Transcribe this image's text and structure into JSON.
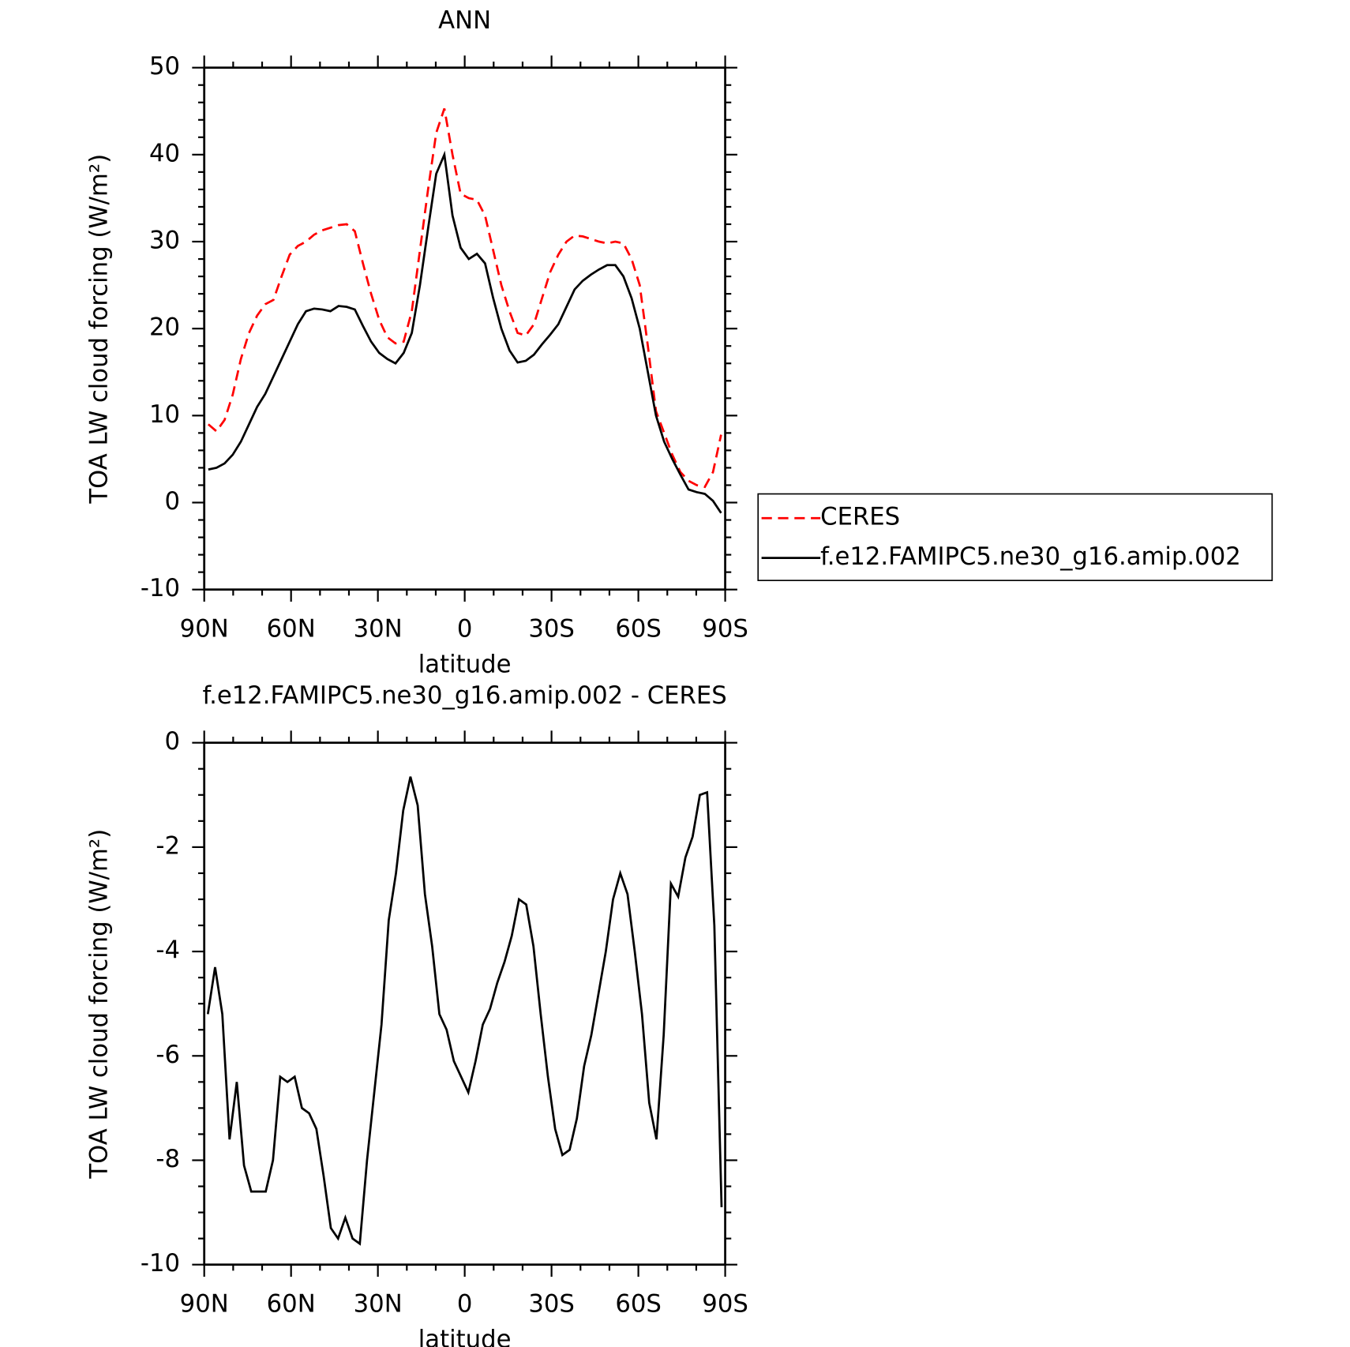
{
  "chart_data": [
    {
      "type": "line",
      "title": "ANN",
      "xlabel": "latitude",
      "ylabel": "TOA LW cloud forcing (W/m²)",
      "x": [
        88.59,
        85.78,
        82.97,
        80.16,
        77.34,
        74.53,
        71.72,
        68.91,
        66.09,
        63.28,
        60.47,
        57.66,
        54.84,
        52.03,
        49.22,
        46.41,
        43.59,
        40.78,
        37.97,
        35.16,
        32.34,
        29.53,
        26.72,
        23.91,
        21.09,
        18.28,
        15.47,
        12.66,
        9.84,
        7.03,
        4.22,
        1.41,
        -1.41,
        -4.22,
        -7.03,
        -9.84,
        -12.66,
        -15.47,
        -18.28,
        -21.09,
        -23.91,
        -26.72,
        -29.53,
        -32.34,
        -35.16,
        -37.97,
        -40.78,
        -43.59,
        -46.41,
        -49.22,
        -52.03,
        -54.84,
        -57.66,
        -60.47,
        -63.28,
        -66.09,
        -68.91,
        -71.72,
        -74.53,
        -77.34,
        -80.16,
        -82.97,
        -85.78,
        -88.59
      ],
      "series": [
        {
          "name": "CERES",
          "color": "#ff0000",
          "style": "dashed",
          "values": [
            9.0,
            8.2,
            9.5,
            12.4,
            16.5,
            19.5,
            21.5,
            22.8,
            23.3,
            26.0,
            28.5,
            29.5,
            30.0,
            30.8,
            31.3,
            31.6,
            31.9,
            32.0,
            31.2,
            27.5,
            24.0,
            21.0,
            19.0,
            18.3,
            18.5,
            22.0,
            29.0,
            36.0,
            42.5,
            45.3,
            40.0,
            35.5,
            35.0,
            34.8,
            33.0,
            29.0,
            25.0,
            22.0,
            19.5,
            19.2,
            20.5,
            23.5,
            26.5,
            28.5,
            30.0,
            30.7,
            30.6,
            30.3,
            30.0,
            29.8,
            30.0,
            29.8,
            28.0,
            25.0,
            18.0,
            10.5,
            8.0,
            5.5,
            3.5,
            2.5,
            2.0,
            1.8,
            3.5,
            7.8
          ]
        },
        {
          "name": "f.e12.FAMIPC5.ne30_g16.amip.002",
          "color": "#000000",
          "style": "solid",
          "values": [
            3.8,
            4.0,
            4.5,
            5.5,
            7.0,
            9.0,
            11.0,
            12.5,
            14.5,
            16.5,
            18.5,
            20.5,
            22.0,
            22.3,
            22.2,
            22.0,
            22.6,
            22.5,
            22.2,
            20.3,
            18.5,
            17.2,
            16.5,
            16.0,
            17.2,
            19.5,
            25.0,
            31.5,
            37.8,
            40.0,
            33.0,
            29.3,
            28.0,
            28.6,
            27.5,
            23.5,
            20.0,
            17.5,
            16.1,
            16.3,
            17.0,
            18.2,
            19.3,
            20.5,
            22.5,
            24.5,
            25.5,
            26.2,
            26.8,
            27.3,
            27.3,
            26.0,
            23.5,
            20.0,
            15.0,
            10.0,
            7.0,
            5.0,
            3.2,
            1.5,
            1.2,
            1.0,
            0.2,
            -1.2
          ]
        }
      ],
      "xlim": [
        90,
        -90
      ],
      "xticks": [
        {
          "value": 90,
          "label": "90N"
        },
        {
          "value": 60,
          "label": "60N"
        },
        {
          "value": 30,
          "label": "30N"
        },
        0,
        {
          "value": -30,
          "label": "30S"
        },
        {
          "value": -60,
          "label": "60S"
        },
        {
          "value": -90,
          "label": "90S"
        }
      ],
      "xminorticks": [
        80,
        70,
        50,
        40,
        20,
        10,
        -10,
        -20,
        -40,
        -50,
        -70,
        -80
      ],
      "ylim": [
        -10,
        50
      ],
      "yticks": [
        -10,
        0,
        10,
        20,
        30,
        40,
        50
      ],
      "yminorticks": [
        -8,
        -6,
        -4,
        -2,
        2,
        4,
        6,
        8,
        12,
        14,
        16,
        18,
        22,
        24,
        26,
        28,
        32,
        34,
        36,
        38,
        42,
        44,
        46,
        48
      ],
      "legend": "right"
    },
    {
      "type": "line",
      "title": "f.e12.FAMIPC5.ne30_g16.amip.002 - CERES",
      "xlabel": "latitude",
      "ylabel": "TOA LW cloud forcing (W/m²)",
      "x": [
        88.75,
        86.25,
        83.75,
        81.25,
        78.75,
        76.25,
        73.75,
        71.25,
        68.75,
        66.25,
        63.75,
        61.25,
        58.75,
        56.25,
        53.75,
        51.25,
        48.75,
        46.25,
        43.75,
        41.25,
        38.75,
        36.25,
        33.75,
        31.25,
        28.75,
        26.25,
        23.75,
        21.25,
        18.75,
        16.25,
        13.75,
        11.25,
        8.75,
        6.25,
        3.75,
        1.25,
        -1.25,
        -3.75,
        -6.25,
        -8.75,
        -11.25,
        -13.75,
        -16.25,
        -18.75,
        -21.25,
        -23.75,
        -26.25,
        -28.75,
        -31.25,
        -33.75,
        -36.25,
        -38.75,
        -41.25,
        -43.75,
        -46.25,
        -48.75,
        -51.25,
        -53.75,
        -56.25,
        -58.75,
        -61.25,
        -63.75,
        -66.25,
        -68.75,
        -71.25,
        -73.75,
        -76.25,
        -78.75,
        -81.25,
        -83.75,
        -86.25,
        -88.75
      ],
      "color": "#000000",
      "values": [
        -5.2,
        -4.3,
        -5.2,
        -7.6,
        -6.5,
        -8.1,
        -8.6,
        -8.6,
        -8.6,
        -8.0,
        -6.4,
        -6.5,
        -6.4,
        -7.0,
        -7.1,
        -7.4,
        -8.3,
        -9.3,
        -9.5,
        -9.1,
        -9.5,
        -9.6,
        -8.0,
        -6.7,
        -5.4,
        -3.4,
        -2.5,
        -1.3,
        -0.65,
        -1.2,
        -2.9,
        -3.9,
        -5.2,
        -5.5,
        -6.1,
        -6.4,
        -6.7,
        -6.1,
        -5.4,
        -5.1,
        -4.6,
        -4.2,
        -3.7,
        -3.0,
        -3.1,
        -3.9,
        -5.2,
        -6.4,
        -7.4,
        -7.9,
        -7.8,
        -7.2,
        -6.2,
        -5.6,
        -4.8,
        -4.0,
        -3.0,
        -2.5,
        -2.9,
        -4.0,
        -5.2,
        -6.9,
        -7.6,
        -5.6,
        -2.7,
        -2.95,
        -2.2,
        -1.8,
        -1.0,
        -0.95,
        -3.5,
        -8.9
      ],
      "xlim": [
        90,
        -90
      ],
      "xticks": [
        {
          "value": 90,
          "label": "90N"
        },
        {
          "value": 60,
          "label": "60N"
        },
        {
          "value": 30,
          "label": "30N"
        },
        0,
        {
          "value": -30,
          "label": "30S"
        },
        {
          "value": -60,
          "label": "60S"
        },
        {
          "value": -90,
          "label": "90S"
        }
      ],
      "xminorticks": [
        80,
        70,
        50,
        40,
        20,
        10,
        -10,
        -20,
        -40,
        -50,
        -70,
        -80
      ],
      "ylim": [
        -10,
        0
      ],
      "yticks": [
        -10,
        -8,
        -6,
        -4,
        -2,
        0
      ],
      "yminorticks": [
        -9.5,
        -9,
        -8.5,
        -7.5,
        -7,
        -6.5,
        -5.5,
        -5,
        -4.5,
        -3.5,
        -3,
        -2.5,
        -1.5,
        -1,
        -0.5
      ]
    }
  ]
}
